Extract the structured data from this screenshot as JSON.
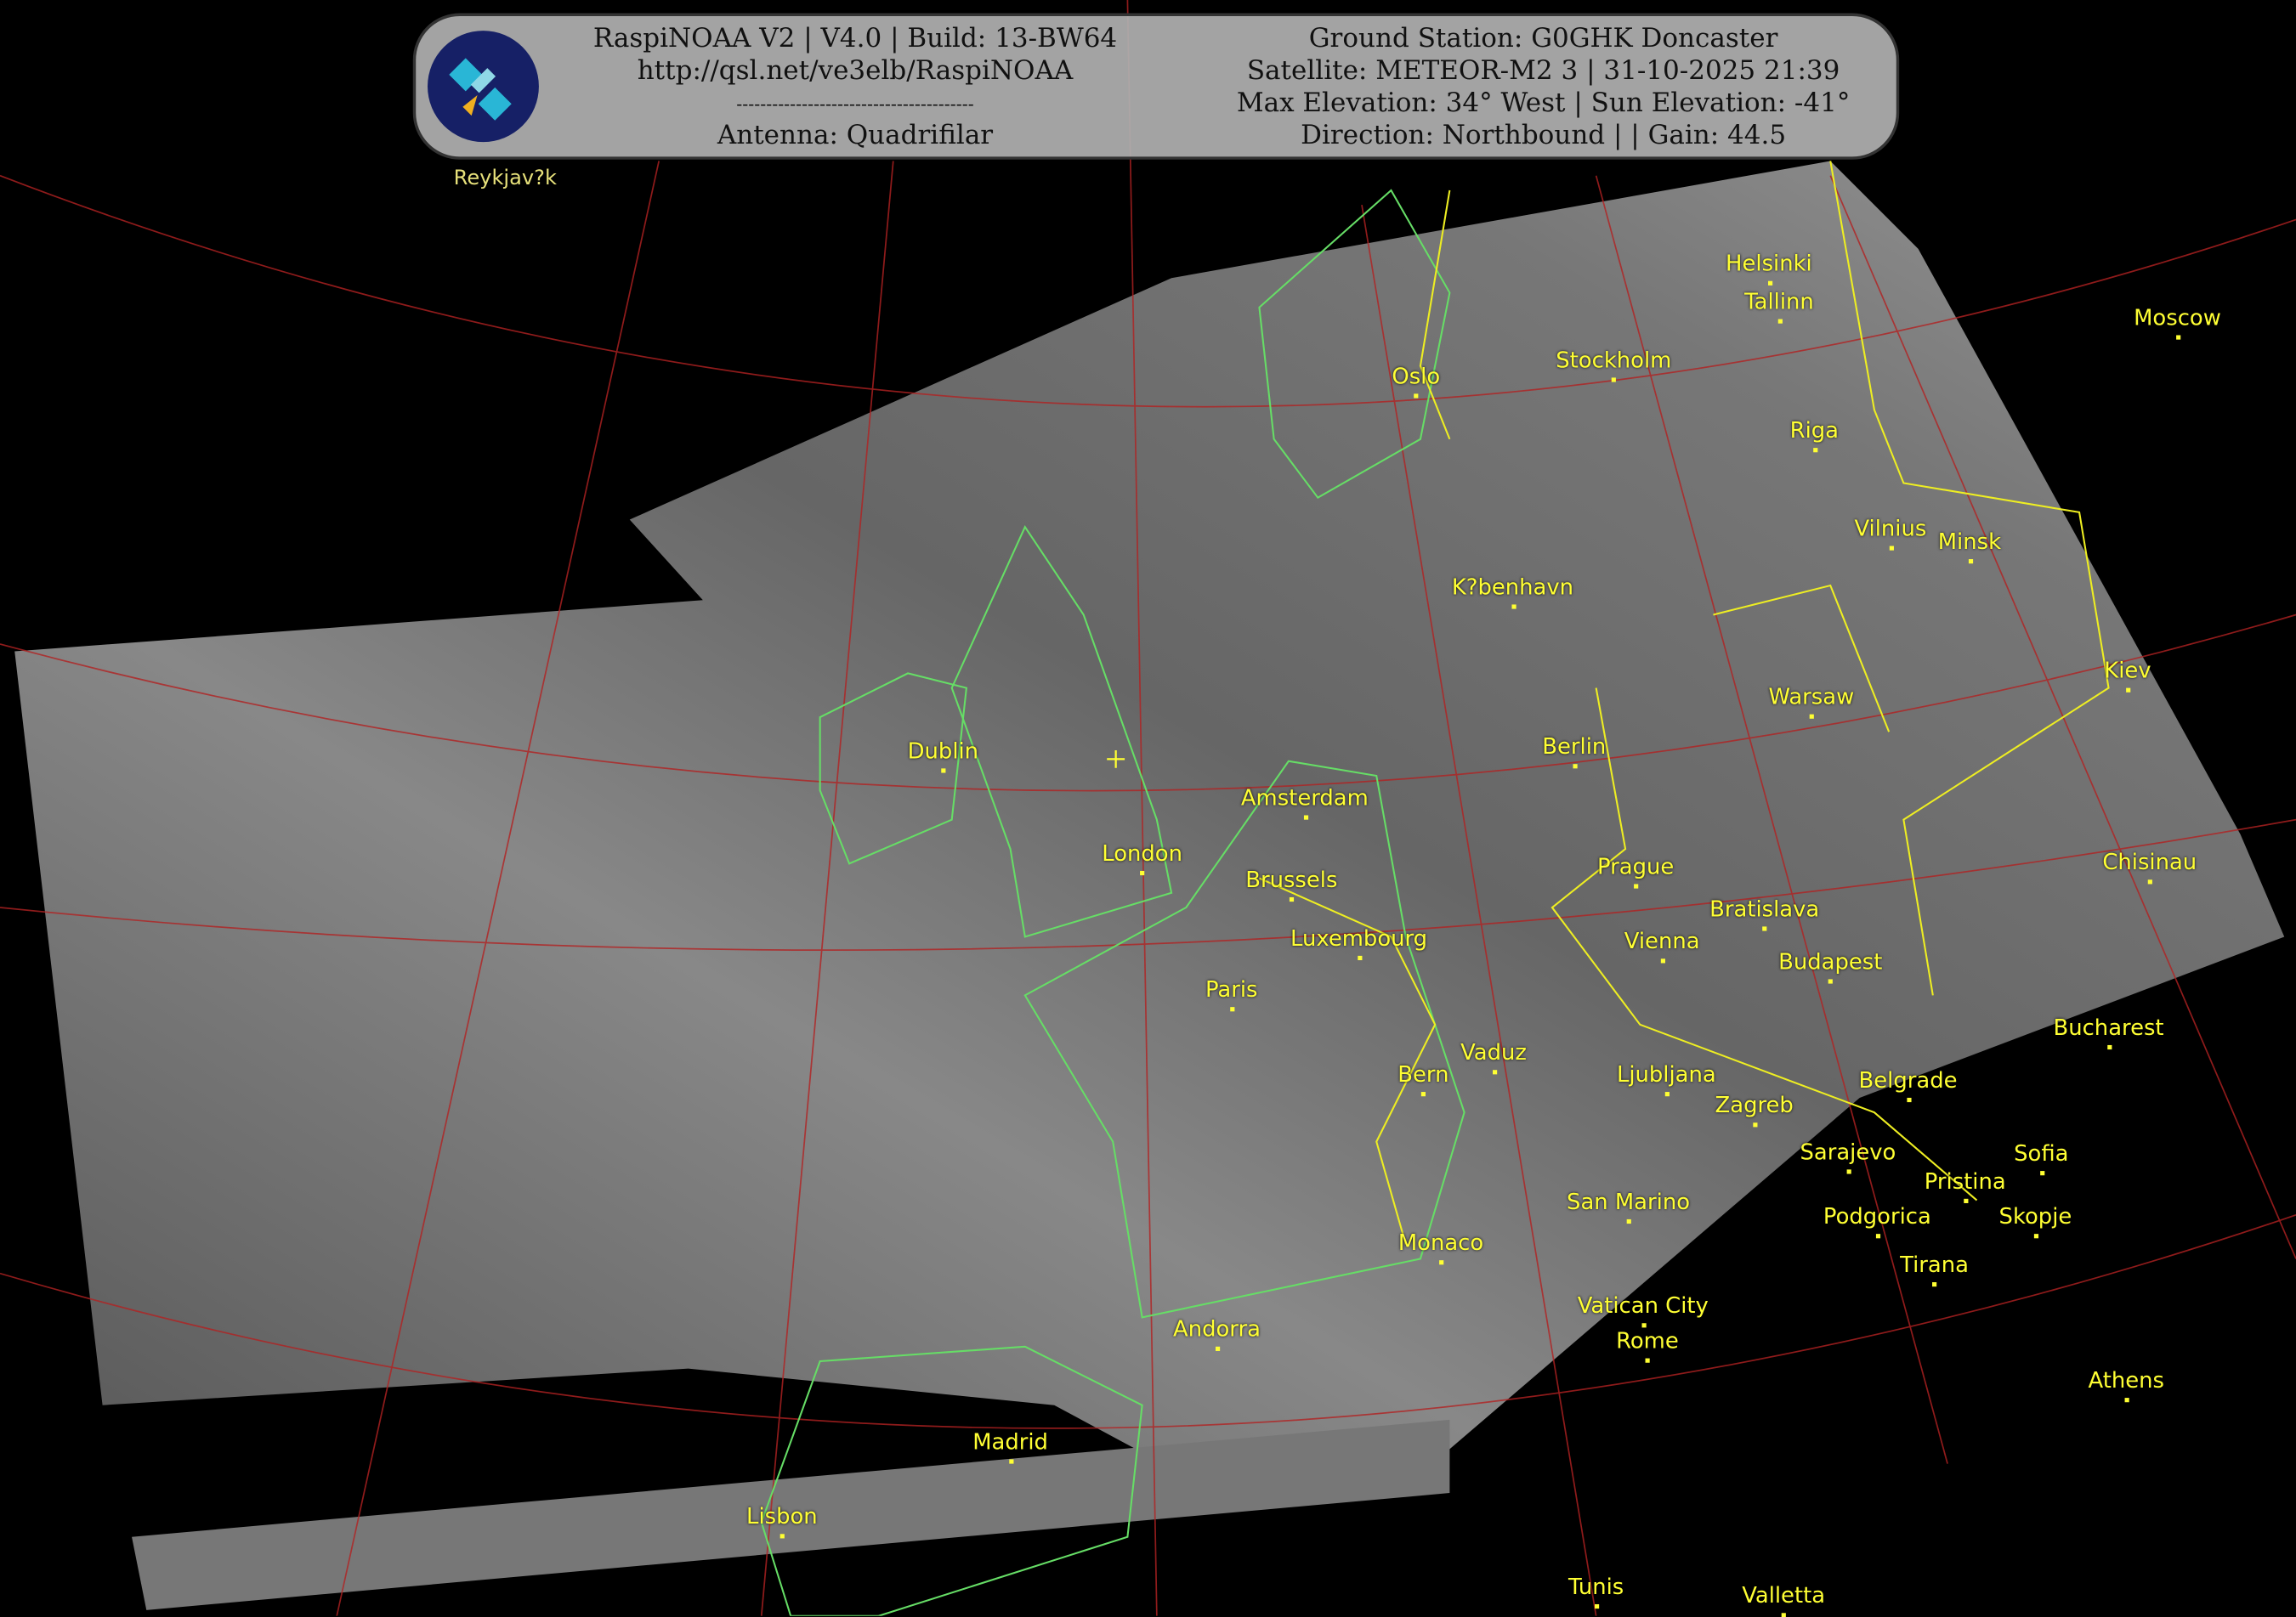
{
  "banner": {
    "left_lines": [
      "RaspiNOAA V2 | V4.0 | Build: 13-BW64",
      "http://qsl.net/ve3elb/RaspiNOAA",
      "----------------------------------------",
      "Antenna: Quadrifilar"
    ],
    "right_lines": [
      "Ground Station: G0GHK Doncaster",
      "Satellite: METEOR-M2 3 | 31-10-2025 21:39",
      "Max Elevation: 34° West | Sun Elevation: -41°",
      "Direction: Northbound | | Gain: 44.5"
    ],
    "logo_icon": "satellite-icon"
  },
  "colors": {
    "city_label": "#ffff33",
    "coastline": "#66dd66",
    "borders": "#eeee22",
    "graticule": "#b22222"
  },
  "cities": [
    "Reykjav?k",
    "Helsinki",
    "Tallinn",
    "Moscow",
    "Oslo",
    "Stockholm",
    "Riga",
    "Vilnius",
    "Minsk",
    "K?benhavn",
    "Kiev",
    "Warsaw",
    "Dublin",
    "Berlin",
    "Amsterdam",
    "London",
    "Prague",
    "Chisinau",
    "Brussels",
    "Luxembourg",
    "Vienna",
    "Bratislava",
    "Budapest",
    "Paris",
    "Bucharest",
    "Vaduz",
    "Bern",
    "Ljubljana",
    "Zagreb",
    "Belgrade",
    "Sarajevo",
    "Sofia",
    "Pristina",
    "Skopje",
    "Podgorica",
    "San Marino",
    "Monaco",
    "Tirana",
    "Vatican City",
    "Rome",
    "Andorra",
    "Athens",
    "Madrid",
    "Lisbon",
    "Tunis",
    "Valletta"
  ]
}
